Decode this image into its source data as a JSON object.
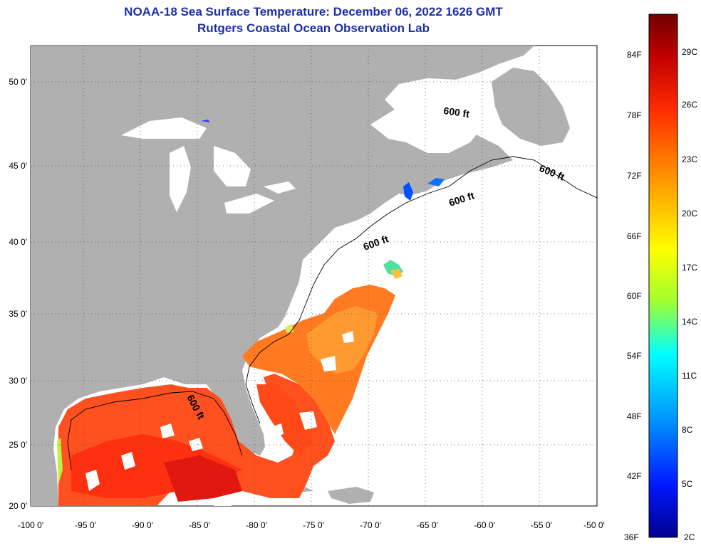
{
  "title_line1": "NOAA-18 Sea Surface Temperature:  December 06, 2022 1626 GMT",
  "title_line2": "Rutgers Coastal Ocean Observation Lab",
  "lon_labels": [
    "-100 0'",
    "-95 0'",
    "-90 0'",
    "-85 0'",
    "-80 0'",
    "-75 0'",
    "-70 0'",
    "-65 0'",
    "-60 0'",
    "-55 0'",
    "-50 0'"
  ],
  "lat_labels": [
    "50 0'",
    "45 0'",
    "40 0'",
    "35 0'",
    "30 0'",
    "25 0'",
    "20 0'"
  ],
  "depth_contour_label": "600 ft",
  "colorbar": {
    "fahrenheit_labels": [
      "84F",
      "78F",
      "72F",
      "66F",
      "60F",
      "54F",
      "48F",
      "42F",
      "36F"
    ],
    "celsius_labels": [
      "29C",
      "26C",
      "23C",
      "20C",
      "17C",
      "14C",
      "11C",
      "8C",
      "5C",
      "2C"
    ],
    "colors": [
      "#7a0000",
      "#c00000",
      "#ff2000",
      "#ff7000",
      "#ffb000",
      "#ffff00",
      "#a0ff40",
      "#00ffff",
      "#0090ff",
      "#0020ff",
      "#000080"
    ]
  },
  "colors": {
    "land": "#b0b0b0",
    "ocean": "#ffffff",
    "title": "#1c2fa6"
  }
}
